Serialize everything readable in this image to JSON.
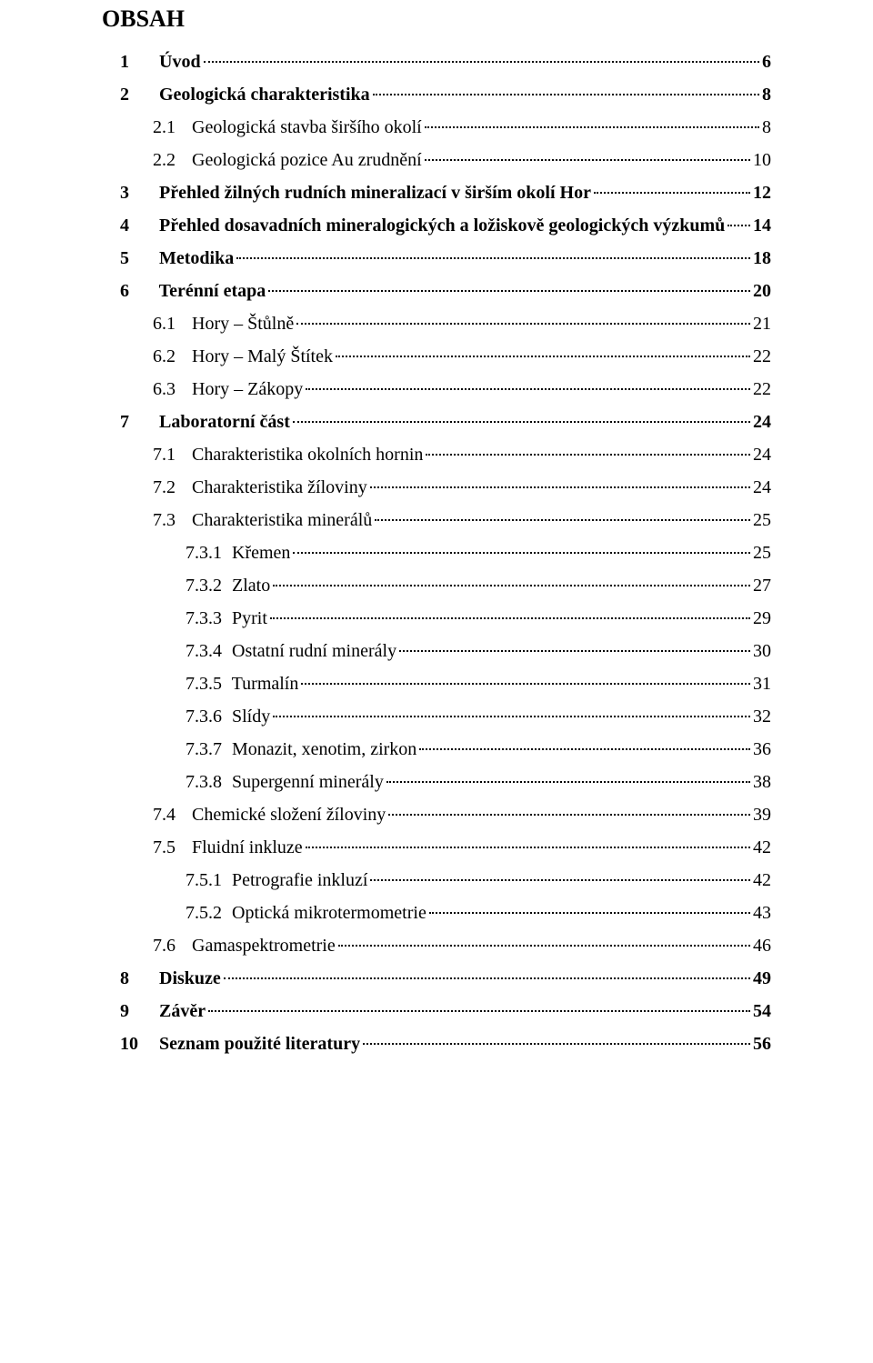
{
  "title": "OBSAH",
  "entries": [
    {
      "level": 1,
      "bold": true,
      "num": "1",
      "numWide": false,
      "text": "Úvod",
      "page": "6"
    },
    {
      "level": 1,
      "bold": true,
      "num": "2",
      "numWide": false,
      "text": "Geologická charakteristika",
      "page": "8"
    },
    {
      "level": 2,
      "bold": false,
      "num": "2.1",
      "numWide": false,
      "text": "Geologická stavba širšího okolí",
      "page": "8"
    },
    {
      "level": 2,
      "bold": false,
      "num": "2.2",
      "numWide": false,
      "text": "Geologická pozice Au zrudnění",
      "page": "10"
    },
    {
      "level": 1,
      "bold": true,
      "num": "3",
      "numWide": false,
      "text": "Přehled žilných rudních mineralizací v širším okolí Hor",
      "page": "12"
    },
    {
      "level": 1,
      "bold": true,
      "num": "4",
      "numWide": false,
      "text": "Přehled dosavadních mineralogických a ložiskově geologických výzkumů",
      "page": "14"
    },
    {
      "level": 1,
      "bold": true,
      "num": "5",
      "numWide": false,
      "text": "Metodika",
      "page": "18"
    },
    {
      "level": 1,
      "bold": true,
      "num": "6",
      "numWide": false,
      "text": "Terénní etapa",
      "page": "20"
    },
    {
      "level": 2,
      "bold": false,
      "num": "6.1",
      "numWide": false,
      "text": "Hory – Štůlně",
      "page": "21"
    },
    {
      "level": 2,
      "bold": false,
      "num": "6.2",
      "numWide": false,
      "text": "Hory – Malý Štítek",
      "page": "22"
    },
    {
      "level": 2,
      "bold": false,
      "num": "6.3",
      "numWide": false,
      "text": "Hory – Zákopy",
      "page": "22"
    },
    {
      "level": 1,
      "bold": true,
      "num": "7",
      "numWide": false,
      "text": "Laboratorní část",
      "page": "24"
    },
    {
      "level": 2,
      "bold": false,
      "num": "7.1",
      "numWide": false,
      "text": "Charakteristika okolních hornin",
      "page": "24"
    },
    {
      "level": 2,
      "bold": false,
      "num": "7.2",
      "numWide": false,
      "text": "Charakteristika žíloviny",
      "page": "24"
    },
    {
      "level": 2,
      "bold": false,
      "num": "7.3",
      "numWide": false,
      "text": "Charakteristika minerálů",
      "page": "25"
    },
    {
      "level": 3,
      "bold": false,
      "num": "7.3.1",
      "numWide": true,
      "text": "Křemen",
      "page": "25"
    },
    {
      "level": 3,
      "bold": false,
      "num": "7.3.2",
      "numWide": true,
      "text": "Zlato",
      "page": "27"
    },
    {
      "level": 3,
      "bold": false,
      "num": "7.3.3",
      "numWide": true,
      "text": "Pyrit",
      "page": "29"
    },
    {
      "level": 3,
      "bold": false,
      "num": "7.3.4",
      "numWide": true,
      "text": "Ostatní rudní minerály",
      "page": "30"
    },
    {
      "level": 3,
      "bold": false,
      "num": "7.3.5",
      "numWide": true,
      "text": "Turmalín",
      "page": "31"
    },
    {
      "level": 3,
      "bold": false,
      "num": "7.3.6",
      "numWide": true,
      "text": "Slídy",
      "page": "32"
    },
    {
      "level": 3,
      "bold": false,
      "num": "7.3.7",
      "numWide": true,
      "text": "Monazit, xenotim, zirkon",
      "page": "36"
    },
    {
      "level": 3,
      "bold": false,
      "num": "7.3.8",
      "numWide": true,
      "text": "Supergenní minerály",
      "page": "38"
    },
    {
      "level": 2,
      "bold": false,
      "num": "7.4",
      "numWide": false,
      "text": "Chemické složení žíloviny",
      "page": "39"
    },
    {
      "level": 2,
      "bold": false,
      "num": "7.5",
      "numWide": false,
      "text": "Fluidní inkluze",
      "page": "42"
    },
    {
      "level": 3,
      "bold": false,
      "num": "7.5.1",
      "numWide": true,
      "text": "Petrografie inkluzí",
      "page": "42"
    },
    {
      "level": 3,
      "bold": false,
      "num": "7.5.2",
      "numWide": true,
      "text": "Optická mikrotermometrie",
      "page": "43"
    },
    {
      "level": 2,
      "bold": false,
      "num": "7.6",
      "numWide": false,
      "text": "Gamaspektrometrie",
      "page": "46"
    },
    {
      "level": 1,
      "bold": true,
      "num": "8",
      "numWide": false,
      "text": "Diskuze",
      "page": "49"
    },
    {
      "level": 1,
      "bold": true,
      "num": "9",
      "numWide": false,
      "text": "Závěr",
      "page": "54"
    },
    {
      "level": 1,
      "bold": true,
      "num": "10",
      "numWide": false,
      "text": "Seznam použité literatury",
      "page": "56"
    }
  ]
}
